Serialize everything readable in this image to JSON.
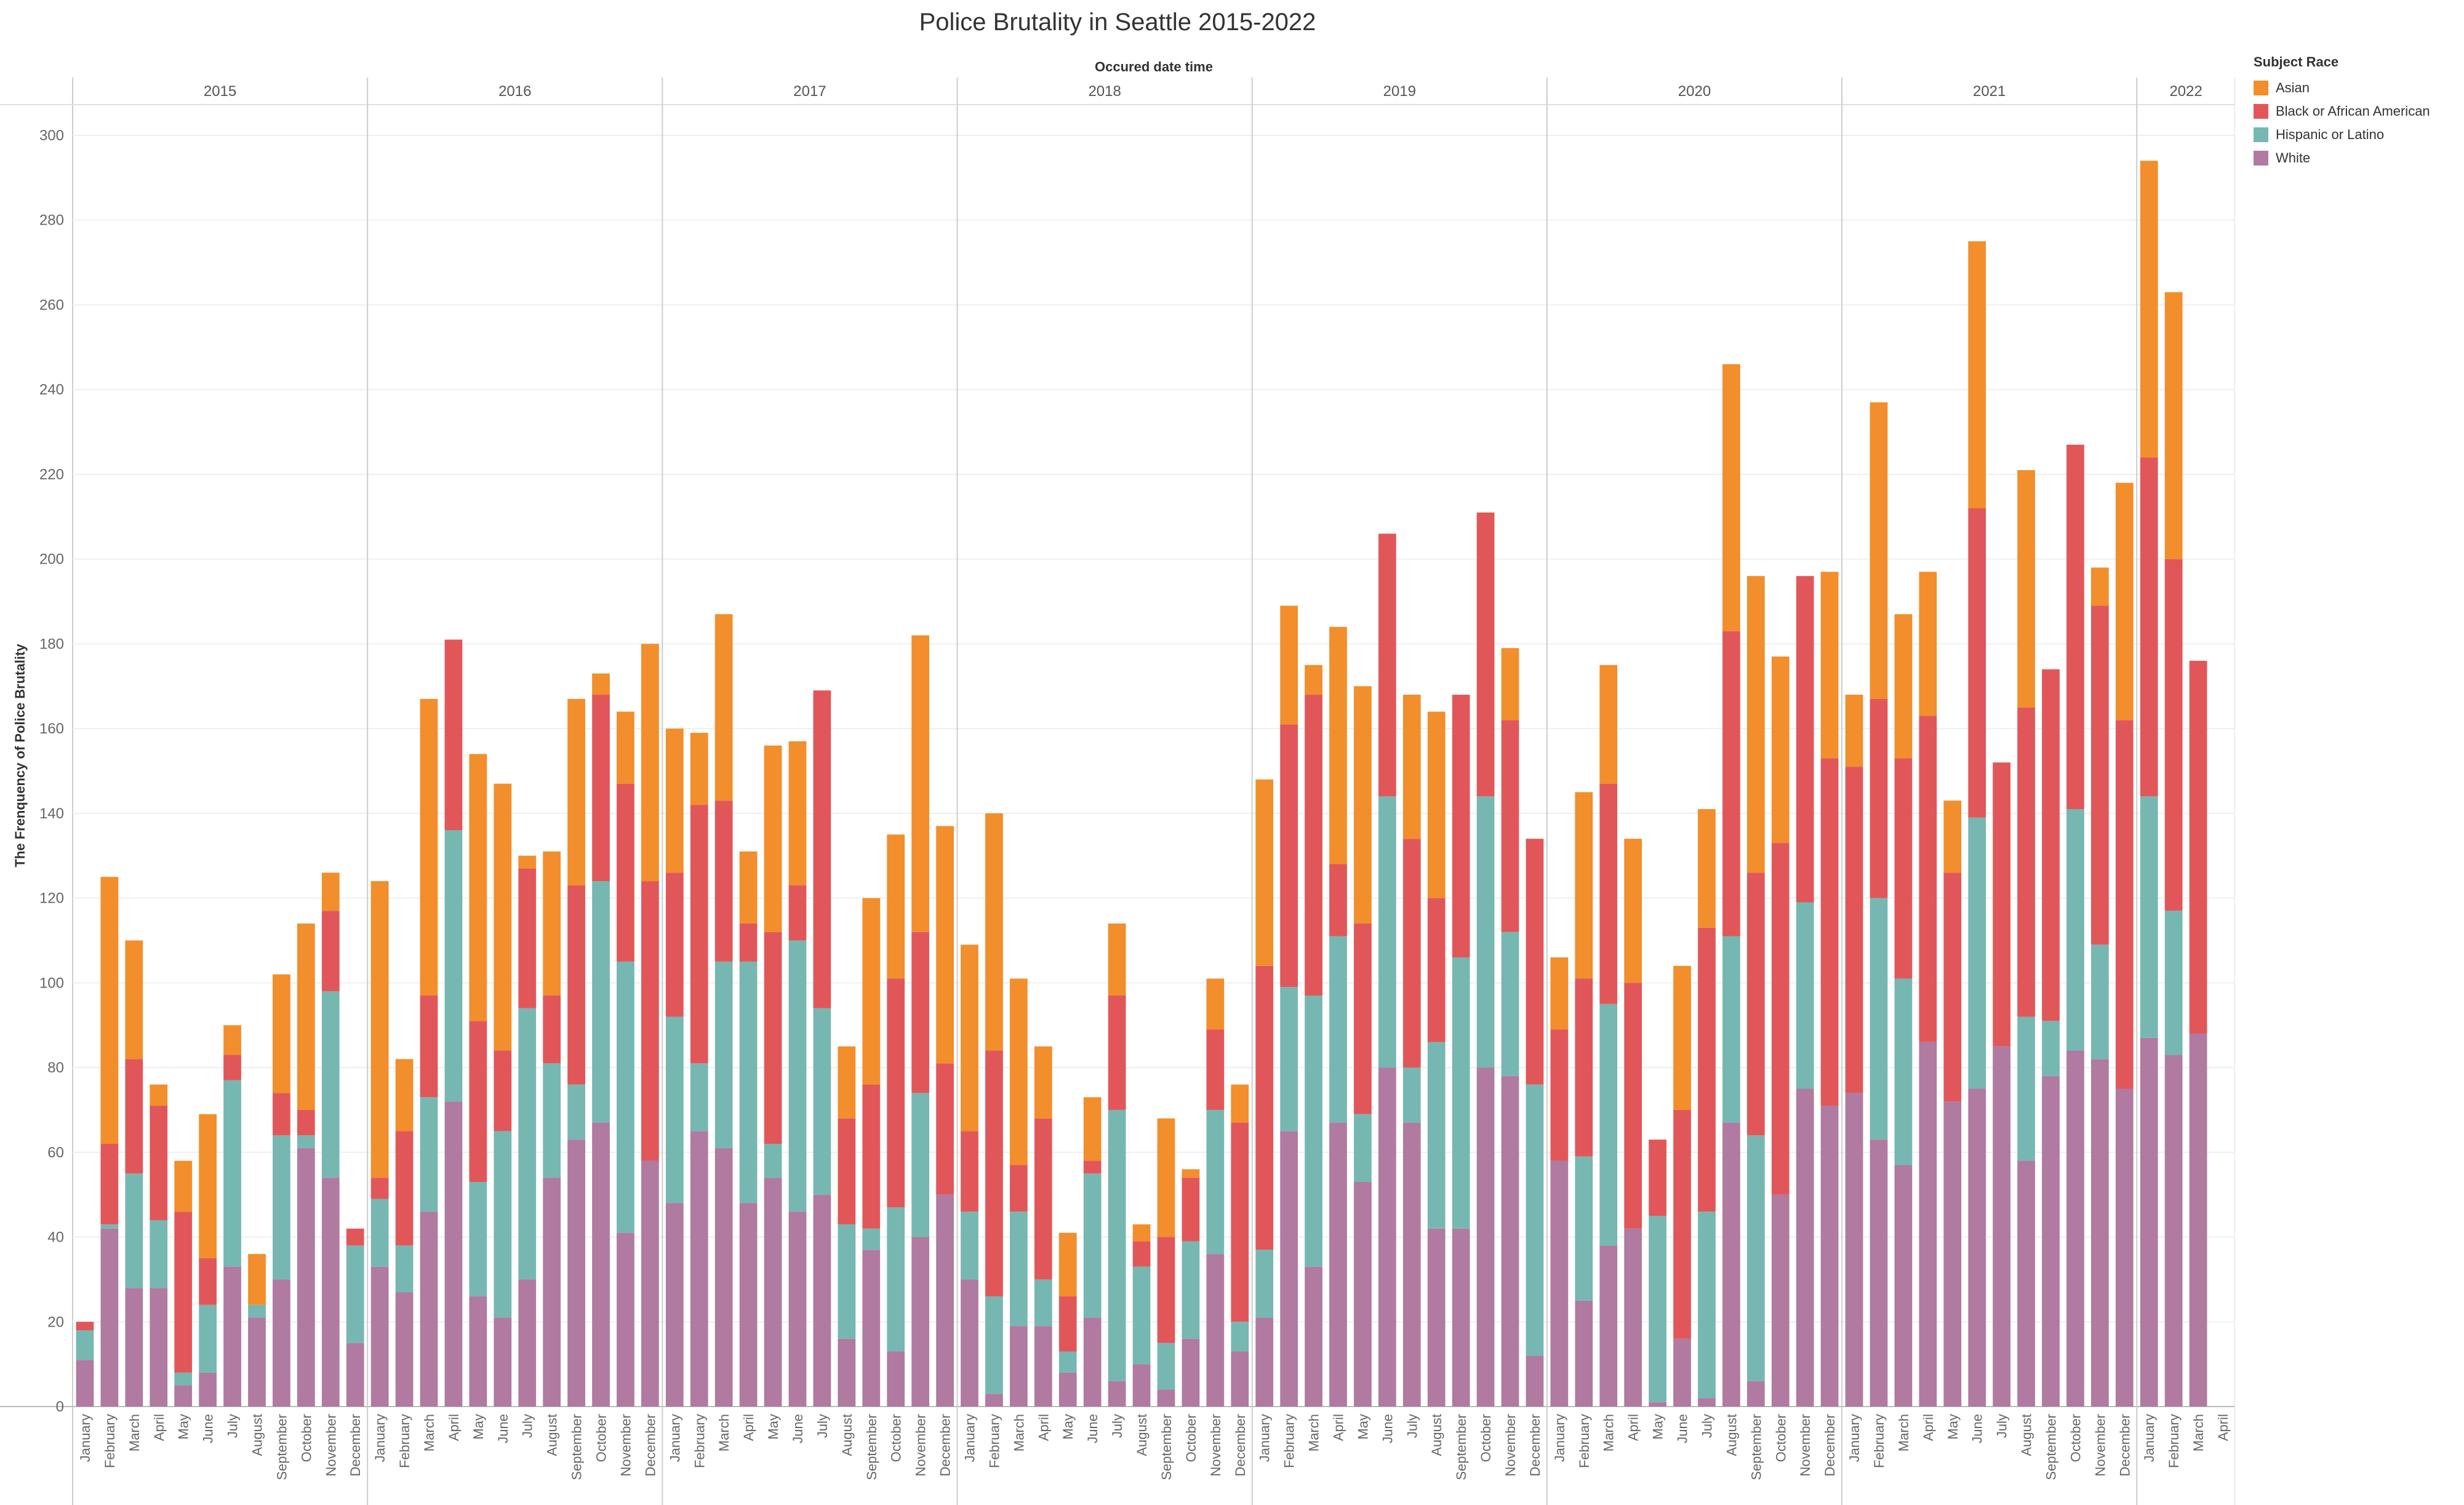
{
  "title": "Police Brutality in Seattle 2015-2022",
  "legend": {
    "title": "Subject Race",
    "items": [
      {
        "label": "Asian",
        "color": "#f28e2b"
      },
      {
        "label": "Black or African American",
        "color": "#e15759"
      },
      {
        "label": "Hispanic or Latino",
        "color": "#76b7b2"
      },
      {
        "label": "White",
        "color": "#b07aa1"
      }
    ]
  },
  "chart_data": {
    "type": "bar",
    "stacked": true,
    "title": "Police Brutality in Seattle 2015-2022",
    "xlabel": "Occured date time",
    "ylabel": "The Frenquency of Police Brutality",
    "ylim": [
      0,
      300
    ],
    "yticks": [
      0,
      20,
      40,
      60,
      80,
      100,
      120,
      140,
      160,
      180,
      200,
      220,
      240,
      260,
      280,
      300
    ],
    "grid": true,
    "legend_position": "top-right",
    "groups": [
      {
        "year": "2015",
        "months": [
          "January",
          "February",
          "March",
          "April",
          "May",
          "June",
          "July",
          "August",
          "September",
          "October",
          "November",
          "December"
        ]
      },
      {
        "year": "2016",
        "months": [
          "January",
          "February",
          "March",
          "April",
          "May",
          "June",
          "July",
          "August",
          "September",
          "October",
          "November",
          "December"
        ]
      },
      {
        "year": "2017",
        "months": [
          "January",
          "February",
          "March",
          "April",
          "May",
          "June",
          "July",
          "August",
          "September",
          "October",
          "November",
          "December"
        ]
      },
      {
        "year": "2018",
        "months": [
          "January",
          "February",
          "March",
          "April",
          "May",
          "June",
          "July",
          "August",
          "September",
          "October",
          "November",
          "December"
        ]
      },
      {
        "year": "2019",
        "months": [
          "January",
          "February",
          "March",
          "April",
          "May",
          "June",
          "July",
          "August",
          "September",
          "October",
          "November",
          "December"
        ]
      },
      {
        "year": "2020",
        "months": [
          "January",
          "February",
          "March",
          "April",
          "May",
          "June",
          "July",
          "August",
          "September",
          "October",
          "November",
          "December"
        ]
      },
      {
        "year": "2021",
        "months": [
          "January",
          "February",
          "March",
          "April",
          "May",
          "June",
          "July",
          "August",
          "September",
          "October",
          "November",
          "December"
        ]
      },
      {
        "year": "2022",
        "months": [
          "January",
          "February",
          "March",
          "April"
        ]
      }
    ],
    "series": [
      {
        "name": "White",
        "color": "#b07aa1",
        "values": [
          11,
          42,
          28,
          28,
          5,
          8,
          33,
          21,
          30,
          61,
          54,
          15,
          33,
          27,
          46,
          72,
          26,
          21,
          30,
          54,
          63,
          67,
          41,
          58,
          48,
          65,
          61,
          48,
          54,
          46,
          50,
          16,
          37,
          13,
          40,
          50,
          30,
          3,
          19,
          19,
          8,
          21,
          6,
          10,
          4,
          16,
          36,
          13,
          21,
          65,
          33,
          67,
          53,
          80,
          67,
          42,
          42,
          80,
          78,
          12,
          58,
          25,
          38,
          42,
          1,
          16,
          2,
          67,
          6,
          50,
          75,
          71,
          74,
          63,
          57,
          86,
          72,
          75,
          85,
          58,
          78,
          84,
          82,
          75,
          87,
          83,
          88
        ]
      },
      {
        "name": "Hispanic or Latino",
        "color": "#76b7b2",
        "values": [
          7,
          1,
          27,
          16,
          3,
          16,
          44,
          3,
          34,
          3,
          44,
          23,
          16,
          11,
          27,
          64,
          27,
          44,
          64,
          27,
          13,
          57,
          64,
          0,
          44,
          16,
          44,
          57,
          8,
          64,
          44,
          27,
          5,
          34,
          34,
          0,
          16,
          23,
          27,
          11,
          5,
          34,
          64,
          23,
          11,
          23,
          34,
          7,
          16,
          34,
          64,
          44,
          16,
          64,
          13,
          44,
          64,
          64,
          34,
          64,
          0,
          34,
          57,
          0,
          44,
          0,
          44,
          44,
          58,
          0,
          44,
          0,
          0,
          57,
          44,
          0,
          0,
          64,
          0,
          34,
          13,
          57,
          27,
          0,
          57,
          34,
          0
        ]
      },
      {
        "name": "Black or African American",
        "color": "#e15759",
        "values": [
          2,
          19,
          27,
          27,
          38,
          11,
          6,
          0,
          10,
          6,
          19,
          4,
          5,
          27,
          24,
          45,
          38,
          19,
          33,
          16,
          47,
          44,
          42,
          66,
          34,
          61,
          38,
          9,
          50,
          13,
          75,
          25,
          34,
          54,
          38,
          31,
          19,
          58,
          11,
          38,
          13,
          3,
          27,
          6,
          25,
          15,
          19,
          47,
          67,
          62,
          71,
          17,
          45,
          62,
          54,
          34,
          62,
          67,
          50,
          58,
          31,
          42,
          52,
          58,
          18,
          54,
          67,
          72,
          62,
          83,
          77,
          82,
          77,
          47,
          52,
          77,
          54,
          73,
          67,
          73,
          83,
          86,
          80,
          87,
          80,
          83,
          88
        ]
      },
      {
        "name": "Asian",
        "color": "#f28e2b",
        "values": [
          0,
          63,
          28,
          5,
          12,
          34,
          7,
          12,
          28,
          44,
          9,
          0,
          70,
          17,
          70,
          0,
          63,
          63,
          3,
          34,
          44,
          5,
          17,
          56,
          34,
          17,
          44,
          17,
          44,
          34,
          0,
          17,
          44,
          34,
          70,
          56,
          44,
          56,
          44,
          17,
          15,
          15,
          17,
          4,
          28,
          2,
          12,
          9,
          44,
          28,
          7,
          56,
          56,
          0,
          34,
          44,
          0,
          0,
          17,
          0,
          17,
          44,
          28,
          34,
          0,
          34,
          28,
          63,
          70,
          44,
          0,
          44,
          17,
          70,
          34,
          34,
          17,
          63,
          0,
          56,
          0,
          0,
          9,
          56,
          70,
          63,
          0
        ]
      }
    ]
  }
}
